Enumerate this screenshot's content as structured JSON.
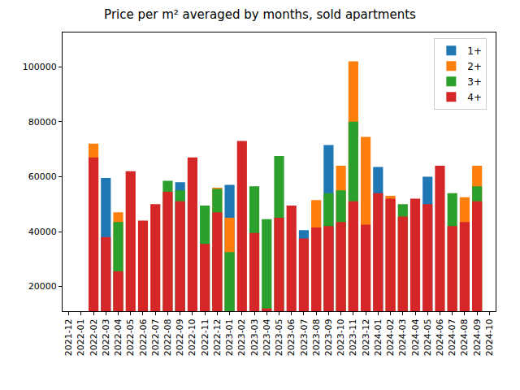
{
  "chart_data": {
    "type": "bar",
    "title": "Price per m² averaged by months, sold apartments",
    "categories": [
      "2021-12",
      "2022-01",
      "2022-02",
      "2022-03",
      "2022-04",
      "2022-05",
      "2022-06",
      "2022-07",
      "2022-08",
      "2022-09",
      "2022-10",
      "2022-11",
      "2022-12",
      "2023-01",
      "2023-02",
      "2023-03",
      "2023-04",
      "2023-05",
      "2023-06",
      "2023-07",
      "2023-08",
      "2023-09",
      "2023-10",
      "2023-11",
      "2023-12",
      "2024-01",
      "2024-02",
      "2024-03",
      "2024-04",
      "2024-05",
      "2024-06",
      "2024-07",
      "2024-08",
      "2024-09",
      "2024-10"
    ],
    "series": [
      {
        "name": "1+",
        "color": "#1f77b4",
        "values": [
          null,
          null,
          null,
          59500,
          null,
          null,
          null,
          null,
          null,
          58000,
          null,
          null,
          null,
          57000,
          null,
          null,
          null,
          null,
          null,
          40500,
          null,
          71500,
          null,
          null,
          null,
          63500,
          null,
          null,
          null,
          60000,
          null,
          null,
          null,
          null,
          null
        ]
      },
      {
        "name": "2+",
        "color": "#ff7f0e",
        "values": [
          null,
          null,
          72000,
          null,
          47000,
          null,
          null,
          null,
          null,
          null,
          null,
          null,
          56000,
          45000,
          null,
          null,
          null,
          null,
          null,
          null,
          51500,
          null,
          64000,
          102000,
          74500,
          null,
          53000,
          null,
          null,
          null,
          null,
          null,
          52500,
          64000,
          null
        ]
      },
      {
        "name": "3+",
        "color": "#2ca02c",
        "values": [
          null,
          null,
          null,
          null,
          43500,
          null,
          null,
          null,
          58500,
          55000,
          null,
          49500,
          55500,
          32500,
          null,
          56500,
          44500,
          67500,
          null,
          null,
          null,
          54000,
          55000,
          80000,
          null,
          null,
          null,
          50000,
          null,
          null,
          null,
          54000,
          null,
          56500,
          null
        ]
      },
      {
        "name": "4+",
        "color": "#d62728",
        "values": [
          null,
          null,
          67000,
          38000,
          25500,
          62000,
          44000,
          50000,
          54500,
          51000,
          67000,
          35500,
          47000,
          null,
          73000,
          39500,
          12000,
          45000,
          49500,
          37500,
          41500,
          42000,
          43500,
          51000,
          42500,
          54000,
          52000,
          45500,
          52000,
          50000,
          64000,
          42000,
          43500,
          51000,
          null
        ]
      }
    ],
    "ylim": [
      11000,
      112500
    ],
    "yticks": [
      20000,
      40000,
      60000,
      80000,
      100000
    ],
    "stacked": false,
    "grid": false,
    "legend": "upper right"
  }
}
